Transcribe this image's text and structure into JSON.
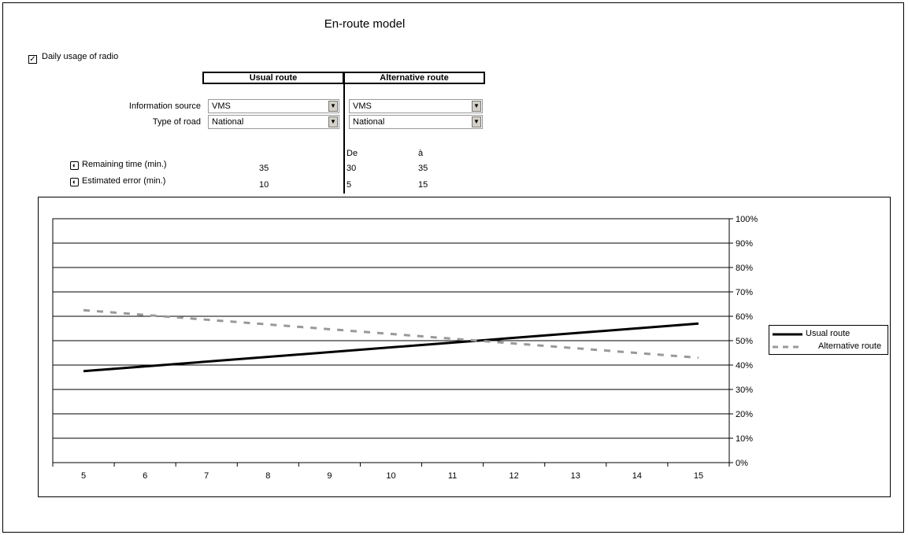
{
  "title": "En-route model",
  "checkbox": {
    "label": "Daily usage of radio",
    "checked": true
  },
  "columns": {
    "usual": "Usual route",
    "alternative": "Alternative route"
  },
  "rows": {
    "information_source": {
      "label": "Information source",
      "usual": "VMS",
      "alternative": "VMS"
    },
    "type_of_road": {
      "label": "Type of road",
      "usual": "National",
      "alternative": "National"
    }
  },
  "range_headers": {
    "from": "De",
    "to": "à"
  },
  "params": {
    "remaining_time": {
      "label": "Remaining time (min.)",
      "usual": "35",
      "from": "30",
      "to": "35"
    },
    "estimated_error": {
      "label": "Estimated error (min.)",
      "usual": "10",
      "from": "5",
      "to": "15"
    }
  },
  "chart_data": {
    "type": "line",
    "x": [
      5,
      15
    ],
    "series": [
      {
        "name": "Usual route",
        "values": [
          37.5,
          57
        ],
        "style": "solid",
        "color": "#000000"
      },
      {
        "name": "Alternative route",
        "values": [
          62.5,
          43
        ],
        "style": "dashed",
        "color": "#999999"
      }
    ],
    "xticks": [
      5,
      6,
      7,
      8,
      9,
      10,
      11,
      12,
      13,
      14,
      15
    ],
    "yticks": [
      "0%",
      "10%",
      "20%",
      "30%",
      "40%",
      "50%",
      "60%",
      "70%",
      "80%",
      "90%",
      "100%"
    ],
    "xlim": [
      4.5,
      15.5
    ],
    "ylim": [
      0,
      100
    ],
    "y_axis_side": "right",
    "grid": true,
    "legend_position": "right"
  }
}
